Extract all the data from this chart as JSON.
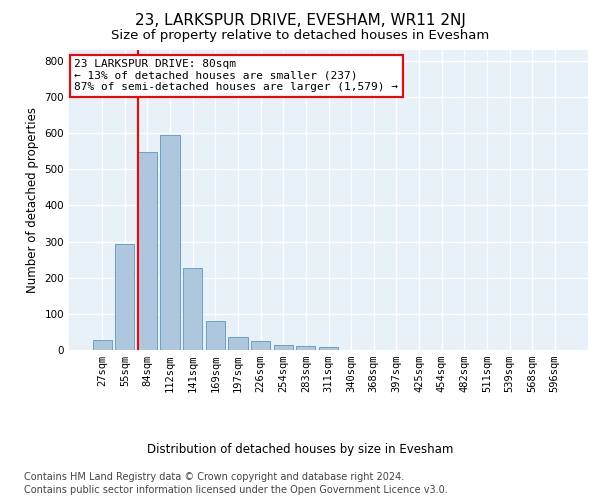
{
  "title1": "23, LARKSPUR DRIVE, EVESHAM, WR11 2NJ",
  "title2": "Size of property relative to detached houses in Evesham",
  "xlabel": "Distribution of detached houses by size in Evesham",
  "ylabel": "Number of detached properties",
  "categories": [
    "27sqm",
    "55sqm",
    "84sqm",
    "112sqm",
    "141sqm",
    "169sqm",
    "197sqm",
    "226sqm",
    "254sqm",
    "283sqm",
    "311sqm",
    "340sqm",
    "368sqm",
    "397sqm",
    "425sqm",
    "454sqm",
    "482sqm",
    "511sqm",
    "539sqm",
    "568sqm",
    "596sqm"
  ],
  "values": [
    27,
    293,
    548,
    596,
    226,
    80,
    37,
    26,
    13,
    10,
    8,
    0,
    0,
    0,
    0,
    0,
    0,
    0,
    0,
    0,
    0
  ],
  "bar_color": "#aec6de",
  "bar_edge_color": "#6aa0c7",
  "vline_bin_index": 2,
  "annotation_text": "23 LARKSPUR DRIVE: 80sqm\n← 13% of detached houses are smaller (237)\n87% of semi-detached houses are larger (1,579) →",
  "annotation_box_color": "white",
  "annotation_box_edgecolor": "red",
  "vline_color": "red",
  "ylim": [
    0,
    830
  ],
  "yticks": [
    0,
    100,
    200,
    300,
    400,
    500,
    600,
    700,
    800
  ],
  "footer1": "Contains HM Land Registry data © Crown copyright and database right 2024.",
  "footer2": "Contains public sector information licensed under the Open Government Licence v3.0.",
  "bg_color": "#e8f0f8",
  "grid_color": "#ffffff",
  "title1_fontsize": 11,
  "title2_fontsize": 9.5,
  "axis_label_fontsize": 8.5,
  "tick_fontsize": 7.5,
  "annotation_fontsize": 8,
  "footer_fontsize": 7
}
